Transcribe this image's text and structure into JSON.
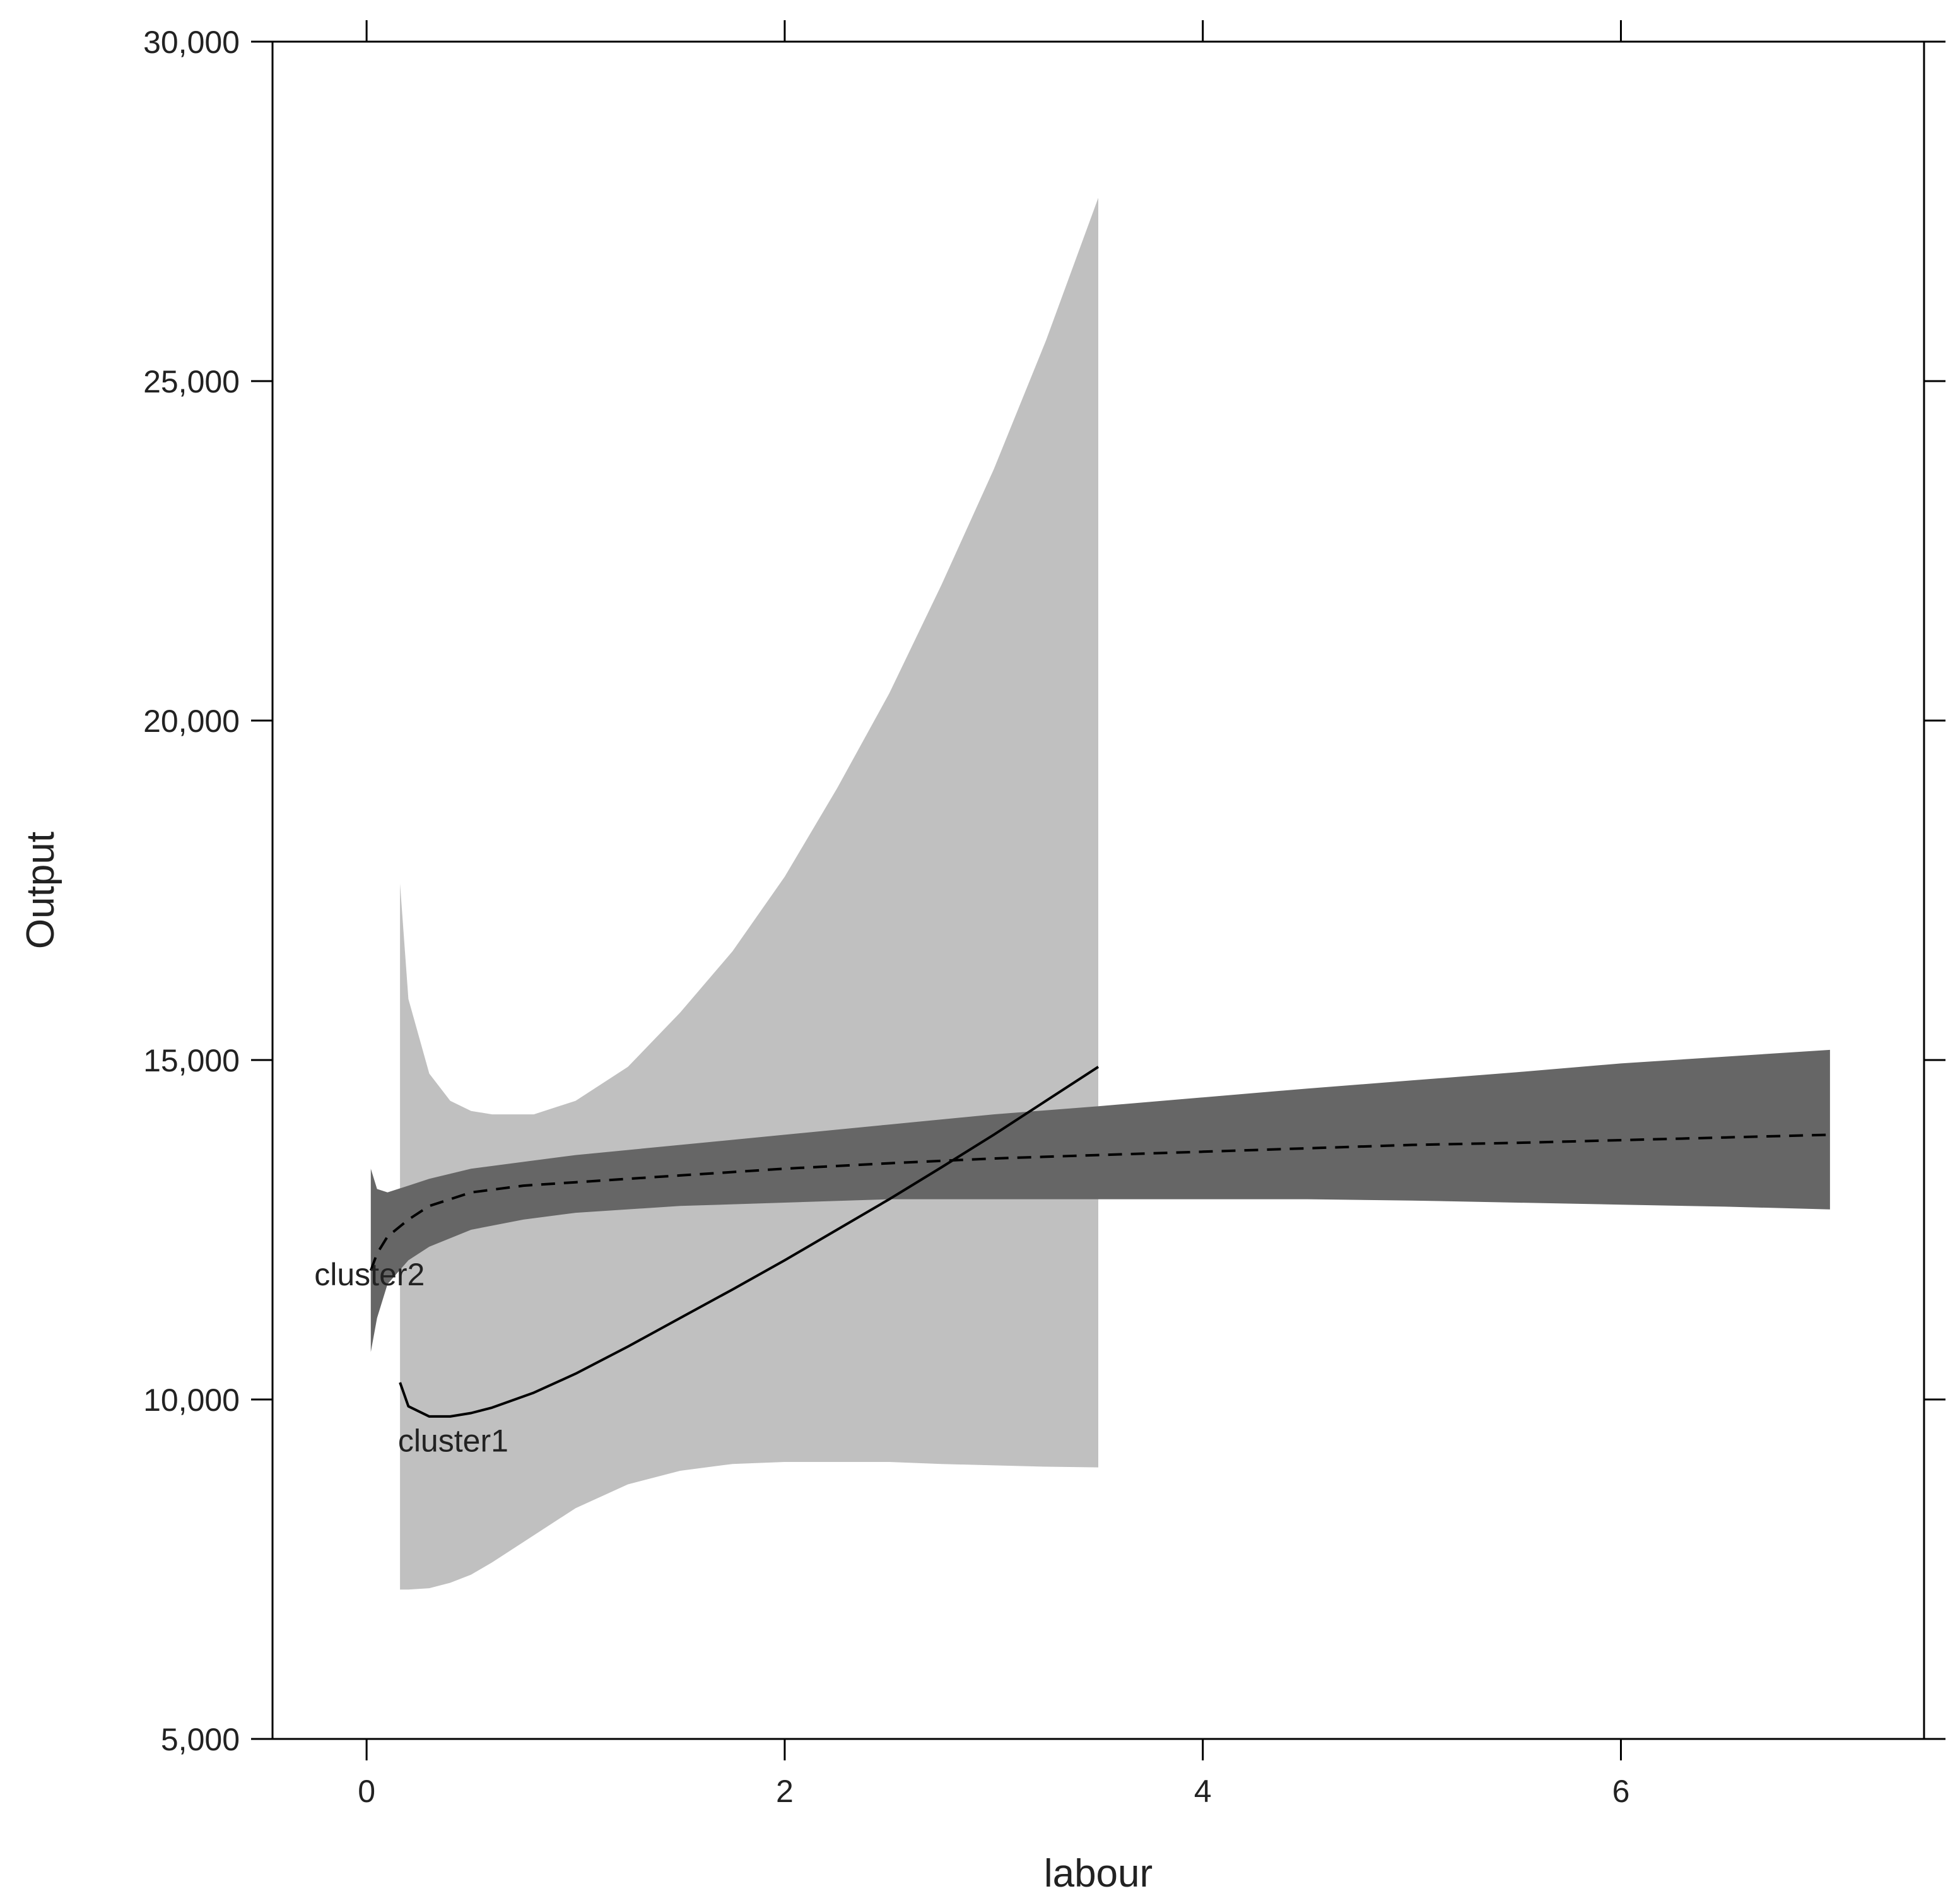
{
  "chart_data": {
    "type": "line",
    "title": "",
    "xlabel": "labour",
    "ylabel": "Output",
    "xlim": [
      -0.45,
      7.45
    ],
    "ylim": [
      5000,
      30000
    ],
    "x_ticks": [
      0,
      2,
      4,
      6
    ],
    "x_tick_labels": [
      "0",
      "2",
      "4",
      "6"
    ],
    "y_ticks": [
      5000,
      10000,
      15000,
      20000,
      25000,
      30000
    ],
    "y_tick_labels": [
      "5,000",
      "10,000",
      "15,000",
      "20,000",
      "25,000",
      "30,000"
    ],
    "grid": false,
    "legend": "none",
    "series": [
      {
        "name": "cluster1",
        "line_style": "solid",
        "band_color": "#c0c0c0",
        "line_color": "#000000",
        "label_at": [
          0.15,
          9400
        ],
        "x": [
          0.16,
          0.2,
          0.3,
          0.4,
          0.5,
          0.6,
          0.8,
          1.0,
          1.25,
          1.5,
          1.75,
          2.0,
          2.25,
          2.5,
          2.75,
          3.0,
          3.25,
          3.5
        ],
        "y": [
          10250,
          9900,
          9750,
          9750,
          9800,
          9880,
          10100,
          10380,
          10780,
          11200,
          11620,
          12050,
          12500,
          12950,
          13420,
          13900,
          14400,
          14900
        ],
        "upper": [
          17600,
          15900,
          14800,
          14400,
          14250,
          14200,
          14200,
          14400,
          14900,
          15700,
          16600,
          17700,
          19000,
          20400,
          22000,
          23700,
          25600,
          27700
        ],
        "lower": [
          7200,
          7200,
          7220,
          7300,
          7420,
          7600,
          8000,
          8400,
          8750,
          8950,
          9050,
          9080,
          9080,
          9080,
          9050,
          9030,
          9010,
          9000
        ]
      },
      {
        "name": "cluster2",
        "line_style": "dashed",
        "band_color": "#666666",
        "line_color": "#000000",
        "label_at": [
          -0.25,
          11850
        ],
        "x": [
          0.02,
          0.05,
          0.1,
          0.2,
          0.3,
          0.5,
          0.75,
          1.0,
          1.5,
          2.0,
          2.5,
          3.0,
          3.5,
          4.0,
          4.5,
          5.0,
          5.5,
          6.0,
          6.5,
          7.0
        ],
        "y": [
          11900,
          12150,
          12400,
          12650,
          12850,
          13050,
          13150,
          13200,
          13300,
          13400,
          13480,
          13550,
          13600,
          13650,
          13700,
          13750,
          13780,
          13820,
          13860,
          13900
        ],
        "upper": [
          13400,
          13100,
          13050,
          13150,
          13250,
          13400,
          13500,
          13600,
          13750,
          13900,
          14050,
          14200,
          14320,
          14450,
          14580,
          14700,
          14820,
          14950,
          15050,
          15150
        ],
        "lower": [
          10700,
          11200,
          11700,
          12050,
          12250,
          12500,
          12650,
          12750,
          12850,
          12900,
          12950,
          12950,
          12950,
          12950,
          12950,
          12930,
          12900,
          12870,
          12840,
          12800
        ]
      }
    ]
  }
}
